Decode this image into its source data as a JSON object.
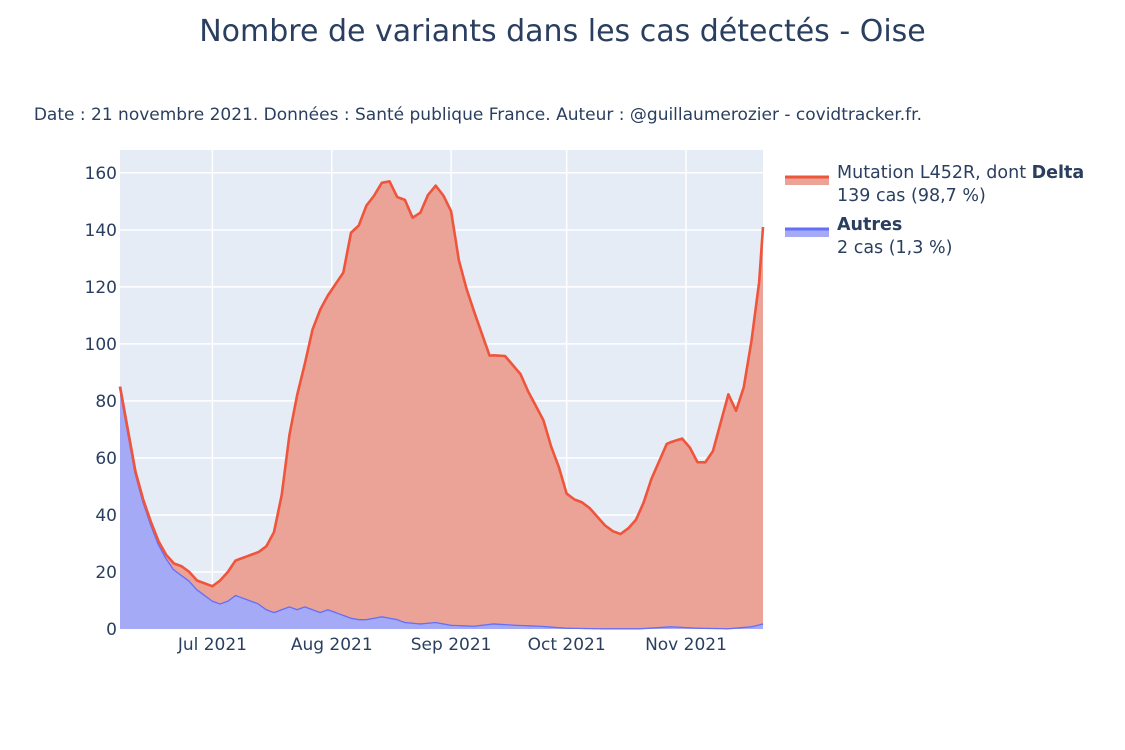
{
  "chart_data": {
    "type": "area",
    "title": "Nombre de variants dans les cas détectés - Oise",
    "subtitle": "Date : 21 novembre 2021. Données : Santé publique France. Auteur : @guillaumerozier - covidtracker.fr.",
    "xlabel": "",
    "ylabel": "",
    "x_range": [
      "2021-06-07",
      "2021-11-21"
    ],
    "ylim": [
      0,
      168
    ],
    "y_ticks": [
      0,
      20,
      40,
      60,
      80,
      100,
      120,
      140,
      160
    ],
    "x_ticks": [
      {
        "date": "2021-07-01",
        "label": "Jul 2021"
      },
      {
        "date": "2021-08-01",
        "label": "Aug 2021"
      },
      {
        "date": "2021-09-01",
        "label": "Sep 2021"
      },
      {
        "date": "2021-10-01",
        "label": "Oct 2021"
      },
      {
        "date": "2021-11-01",
        "label": "Nov 2021"
      }
    ],
    "grid": true,
    "legend_position": "right",
    "stacked": true,
    "series": [
      {
        "name": "Autres",
        "legend_bold": "Autres",
        "legend_detail": "2 cas (1,3 %)",
        "line_color": "#636efa",
        "fill_color": "#a5aaf7",
        "points": [
          [
            "2021-06-07",
            85
          ],
          [
            "2021-06-09",
            70
          ],
          [
            "2021-06-11",
            55
          ],
          [
            "2021-06-13",
            45
          ],
          [
            "2021-06-15",
            37
          ],
          [
            "2021-06-17",
            30
          ],
          [
            "2021-06-19",
            25
          ],
          [
            "2021-06-21",
            21
          ],
          [
            "2021-06-23",
            19
          ],
          [
            "2021-06-25",
            17
          ],
          [
            "2021-06-27",
            14
          ],
          [
            "2021-06-29",
            12
          ],
          [
            "2021-07-01",
            10
          ],
          [
            "2021-07-03",
            9
          ],
          [
            "2021-07-05",
            10
          ],
          [
            "2021-07-07",
            12
          ],
          [
            "2021-07-09",
            11
          ],
          [
            "2021-07-11",
            10
          ],
          [
            "2021-07-13",
            9
          ],
          [
            "2021-07-15",
            7
          ],
          [
            "2021-07-17",
            6
          ],
          [
            "2021-07-19",
            7
          ],
          [
            "2021-07-21",
            8
          ],
          [
            "2021-07-23",
            7
          ],
          [
            "2021-07-25",
            8
          ],
          [
            "2021-07-27",
            7
          ],
          [
            "2021-07-29",
            6
          ],
          [
            "2021-07-31",
            7
          ],
          [
            "2021-08-02",
            6
          ],
          [
            "2021-08-04",
            5
          ],
          [
            "2021-08-06",
            4
          ],
          [
            "2021-08-08",
            3.5
          ],
          [
            "2021-08-10",
            3.5
          ],
          [
            "2021-08-12",
            4
          ],
          [
            "2021-08-14",
            4.5
          ],
          [
            "2021-08-16",
            4
          ],
          [
            "2021-08-18",
            3.5
          ],
          [
            "2021-08-20",
            2.5
          ],
          [
            "2021-08-24",
            2
          ],
          [
            "2021-08-28",
            2.5
          ],
          [
            "2021-09-01",
            1.5
          ],
          [
            "2021-09-07",
            1.2
          ],
          [
            "2021-09-12",
            2
          ],
          [
            "2021-09-18",
            1.5
          ],
          [
            "2021-09-24",
            1.2
          ],
          [
            "2021-10-01",
            0.5
          ],
          [
            "2021-10-10",
            0.3
          ],
          [
            "2021-10-20",
            0.3
          ],
          [
            "2021-10-28",
            1
          ],
          [
            "2021-11-04",
            0.5
          ],
          [
            "2021-11-12",
            0.3
          ],
          [
            "2021-11-18",
            1
          ],
          [
            "2021-11-21",
            2
          ]
        ]
      },
      {
        "name": "Mutation L452R, dont Delta",
        "legend_plain": "Mutation L452R, dont ",
        "legend_bold": "Delta",
        "legend_detail": "139 cas (98,7 %)",
        "line_color": "#ef553b",
        "fill_color": "#eba398",
        "points": [
          [
            "2021-06-07",
            0
          ],
          [
            "2021-06-13",
            0.5
          ],
          [
            "2021-06-19",
            1
          ],
          [
            "2021-06-23",
            3
          ],
          [
            "2021-06-27",
            3
          ],
          [
            "2021-07-01",
            5
          ],
          [
            "2021-07-03",
            8
          ],
          [
            "2021-07-05",
            10
          ],
          [
            "2021-07-07",
            12
          ],
          [
            "2021-07-09",
            14
          ],
          [
            "2021-07-11",
            16
          ],
          [
            "2021-07-13",
            18
          ],
          [
            "2021-07-15",
            22
          ],
          [
            "2021-07-17",
            28
          ],
          [
            "2021-07-19",
            40
          ],
          [
            "2021-07-21",
            60
          ],
          [
            "2021-07-23",
            75
          ],
          [
            "2021-07-25",
            85
          ],
          [
            "2021-07-27",
            98
          ],
          [
            "2021-07-29",
            106
          ],
          [
            "2021-07-31",
            110
          ],
          [
            "2021-08-02",
            115
          ],
          [
            "2021-08-04",
            120
          ],
          [
            "2021-08-06",
            135
          ],
          [
            "2021-08-08",
            138
          ],
          [
            "2021-08-10",
            145
          ],
          [
            "2021-08-12",
            148
          ],
          [
            "2021-08-14",
            152
          ],
          [
            "2021-08-16",
            153
          ],
          [
            "2021-08-18",
            148
          ],
          [
            "2021-08-20",
            148
          ],
          [
            "2021-08-22",
            142
          ],
          [
            "2021-08-24",
            144
          ],
          [
            "2021-08-26",
            150
          ],
          [
            "2021-08-28",
            153
          ],
          [
            "2021-08-30",
            150
          ],
          [
            "2021-09-01",
            145
          ],
          [
            "2021-09-03",
            128
          ],
          [
            "2021-09-05",
            118
          ],
          [
            "2021-09-07",
            110
          ],
          [
            "2021-09-09",
            102
          ],
          [
            "2021-09-11",
            94
          ],
          [
            "2021-09-13",
            94
          ],
          [
            "2021-09-15",
            94
          ],
          [
            "2021-09-17",
            91
          ],
          [
            "2021-09-19",
            88
          ],
          [
            "2021-09-21",
            82
          ],
          [
            "2021-09-23",
            77
          ],
          [
            "2021-09-25",
            72
          ],
          [
            "2021-09-27",
            63
          ],
          [
            "2021-09-29",
            56
          ],
          [
            "2021-10-01",
            47
          ],
          [
            "2021-10-03",
            45
          ],
          [
            "2021-10-05",
            44
          ],
          [
            "2021-10-07",
            42
          ],
          [
            "2021-10-09",
            39
          ],
          [
            "2021-10-11",
            36
          ],
          [
            "2021-10-13",
            34
          ],
          [
            "2021-10-15",
            33
          ],
          [
            "2021-10-17",
            35
          ],
          [
            "2021-10-19",
            38
          ],
          [
            "2021-10-21",
            44
          ],
          [
            "2021-10-23",
            52
          ],
          [
            "2021-10-25",
            58
          ],
          [
            "2021-10-27",
            64
          ],
          [
            "2021-10-29",
            65
          ],
          [
            "2021-10-31",
            66
          ],
          [
            "2021-11-02",
            63
          ],
          [
            "2021-11-04",
            58
          ],
          [
            "2021-11-06",
            58
          ],
          [
            "2021-11-08",
            62
          ],
          [
            "2021-11-10",
            72
          ],
          [
            "2021-11-12",
            82
          ],
          [
            "2021-11-14",
            76
          ],
          [
            "2021-11-16",
            84
          ],
          [
            "2021-11-18",
            100
          ],
          [
            "2021-11-20",
            120
          ],
          [
            "2021-11-21",
            139
          ]
        ]
      }
    ]
  }
}
